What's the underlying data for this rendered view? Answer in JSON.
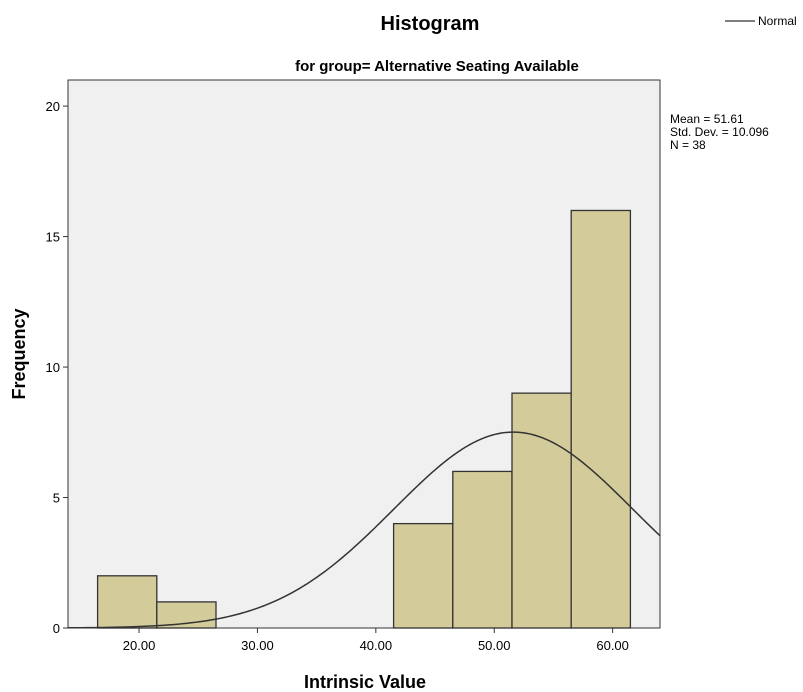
{
  "chart_data": {
    "type": "bar",
    "title": "Histogram",
    "subtitle": "for group= Alternative Seating Available",
    "xlabel": "Intrinsic Value",
    "ylabel": "Frequency",
    "xlim": [
      14,
      64
    ],
    "ylim": [
      0,
      21
    ],
    "x_ticks": [
      {
        "value": 20,
        "label": "20.00"
      },
      {
        "value": 30,
        "label": "30.00"
      },
      {
        "value": 40,
        "label": "40.00"
      },
      {
        "value": 50,
        "label": "50.00"
      },
      {
        "value": 60,
        "label": "60.00"
      }
    ],
    "y_ticks": [
      {
        "value": 0,
        "label": "0"
      },
      {
        "value": 5,
        "label": "5"
      },
      {
        "value": 10,
        "label": "10"
      },
      {
        "value": 15,
        "label": "15"
      },
      {
        "value": 20,
        "label": "20"
      }
    ],
    "bins": [
      {
        "start": 16.5,
        "end": 21.5,
        "count": 2
      },
      {
        "start": 21.5,
        "end": 26.5,
        "count": 1
      },
      {
        "start": 26.5,
        "end": 31.5,
        "count": 0
      },
      {
        "start": 31.5,
        "end": 36.5,
        "count": 0
      },
      {
        "start": 36.5,
        "end": 41.5,
        "count": 0
      },
      {
        "start": 41.5,
        "end": 46.5,
        "count": 4
      },
      {
        "start": 46.5,
        "end": 51.5,
        "count": 6
      },
      {
        "start": 51.5,
        "end": 56.5,
        "count": 9
      },
      {
        "start": 56.5,
        "end": 61.5,
        "count": 16
      }
    ],
    "normal_curve": {
      "mean": 51.61,
      "std_dev": 10.096,
      "n": 38,
      "bin_width": 5
    },
    "stats": [
      "Mean = 51.61",
      "Std. Dev. = 10.096",
      "N = 38"
    ],
    "legend": {
      "label": "Normal",
      "placement": "top-right"
    },
    "grid": false,
    "colors": {
      "bar_fill": "#d3cc9a",
      "bar_stroke": "#333333",
      "plot_bg": "#f0f0f0",
      "curve": "#333333"
    }
  }
}
